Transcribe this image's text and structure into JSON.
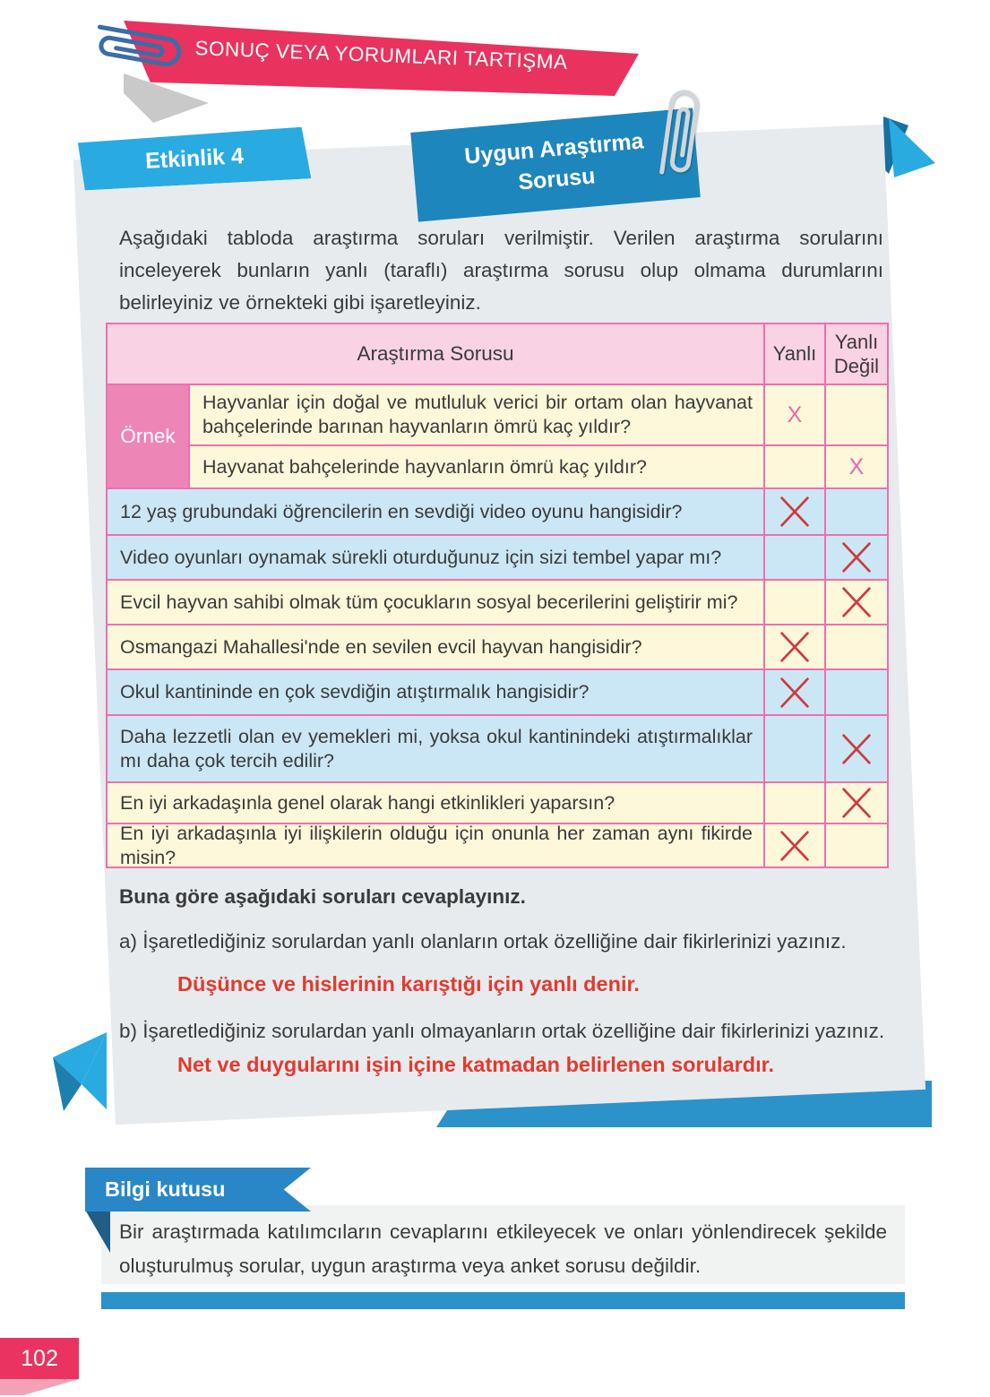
{
  "header": {
    "title": "SONUÇ VEYA YORUMLARI TARTIŞMA"
  },
  "activity": {
    "badge": "Etkinlik 4",
    "topic": "Uygun Araştırma Sorusu",
    "intro": "Aşağıdaki tabloda araştırma soruları verilmiştir. Verilen araştırma sorularını inceleyerek bunların yanlı (taraflı) araştırma sorusu olup olmama durumlarını belirleyiniz ve örnekteki gibi işaretleyiniz."
  },
  "table": {
    "headers": {
      "question": "Araştırma Sorusu",
      "biased": "Yanlı",
      "not_biased": "Yanlı Değil"
    },
    "example_label": "Örnek",
    "mark_symbol": "X",
    "example_rows": [
      {
        "text": "Hayvanlar için doğal ve mutluluk verici bir ortam olan hayvanat bahçelerinde barınan hayvanların ömrü kaç yıldır?",
        "mark": "yanli"
      },
      {
        "text": "Hayvanat bahçelerinde hayvanların ömrü kaç yıldır?",
        "mark": "yanli_degil"
      }
    ],
    "rows": [
      {
        "text": "12 yaş grubundaki öğrencilerin en sevdiği video oyunu hangisidir?",
        "mark": "yanli",
        "tone": "blue"
      },
      {
        "text": "Video oyunları oynamak sürekli oturduğunuz için sizi tembel yapar mı?",
        "mark": "yanli_degil",
        "tone": "blue"
      },
      {
        "text": "Evcil hayvan sahibi olmak tüm çocukların sosyal becerilerini geliştirir mi?",
        "mark": "yanli_degil",
        "tone": "yellow"
      },
      {
        "text": "Osmangazi Mahallesi'nde en sevilen evcil hayvan hangisidir?",
        "mark": "yanli",
        "tone": "yellow"
      },
      {
        "text": "Okul kantininde en çok sevdiğin atıştırmalık hangisidir?",
        "mark": "yanli",
        "tone": "blue"
      },
      {
        "text": "Daha lezzetli olan ev yemekleri mi, yoksa okul kantinindeki atıştırmalıklar mı daha çok tercih edilir?",
        "mark": "yanli_degil",
        "tone": "blue"
      },
      {
        "text": "En iyi arkadaşınla genel olarak hangi etkinlikleri yaparsın?",
        "mark": "yanli_degil",
        "tone": "yellow"
      },
      {
        "text": "En iyi arkadaşınla iyi ilişkilerin olduğu için onunla her zaman aynı fikirde misin?",
        "mark": "yanli",
        "tone": "yellow"
      }
    ]
  },
  "questions": {
    "heading": "Buna göre aşağıdaki soruları cevaplayınız.",
    "a_label": "a) İşaretlediğiniz sorulardan yanlı olanların ortak özelliğine dair fikirlerinizi yazınız.",
    "a_answer": "Düşünce ve hislerinin karıştığı için yanlı denir.",
    "b_label": "b) İşaretlediğiniz sorulardan yanlı olmayanların ortak özelliğine dair fikirlerinizi yazınız.",
    "b_answer": "Net ve duygularını işin içine katmadan belirlenen sorulardır."
  },
  "info_box": {
    "label": "Bilgi kutusu",
    "text": "Bir araştırmada katılımcıların cevaplarını etkileyecek ve onları yönlendirecek şekilde oluşturulmuş sorular, uygun araştırma veya anket sorusu değildir."
  },
  "page": {
    "number": "102"
  },
  "colors": {
    "banner_pink": "#e9325e",
    "badge_cyan": "#29abe2",
    "topic_blue": "#1d86bd",
    "card_gray": "#e7ebee",
    "table_header_pink": "#f9d2e3",
    "example_pink": "#ee85b7",
    "row_yellow": "#fdf8da",
    "row_blue": "#cbe7f6",
    "border_pink": "#ef6fae",
    "x_red": "#cd3a40",
    "x_pink": "#ee67a7",
    "answer_red": "#e33a2e",
    "info_blue": "#2a87c7",
    "page_badge_pink": "#ea3360"
  }
}
